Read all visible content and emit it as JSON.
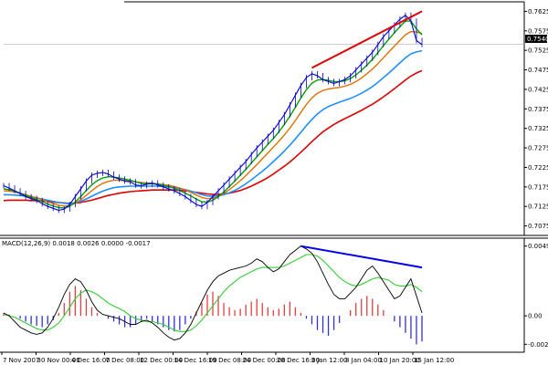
{
  "chart_data": [
    {
      "panel": "price",
      "type": "line",
      "current_price_label": "0.7540",
      "y_ticks": [
        "0.7625",
        "0.7575",
        "0.7525",
        "0.7475",
        "0.7425",
        "0.7375",
        "0.7325",
        "0.7275",
        "0.7225",
        "0.7175",
        "0.7125",
        "0.7075"
      ],
      "ylim": [
        0.706,
        0.764
      ],
      "x_ticks": [
        "7 Nov 2007",
        "30 Nov 00:00",
        "4 Dec 16:00",
        "7 Dec 08:00",
        "12 Dec 00:00",
        "14 Dec 16:00",
        "19 Dec 08:00",
        "24 Dec 00:00",
        "28 Dec 16:00",
        "3 Jan 12:00",
        "8 Jan 04:00",
        "10 Jan 20:00",
        "15 Jan 12:00"
      ],
      "colors": {
        "price": "#0000cc",
        "ma_green": "#00a000",
        "ma_orange": "#e07000",
        "ma_blue": "#1e90ff",
        "ma_red": "#dd0000",
        "trendline": "#dd0000"
      },
      "close": [
        0.7178,
        0.7172,
        0.7165,
        0.7158,
        0.715,
        0.7145,
        0.714,
        0.7132,
        0.7125,
        0.712,
        0.7115,
        0.7118,
        0.713,
        0.715,
        0.717,
        0.719,
        0.7205,
        0.721,
        0.7212,
        0.7208,
        0.72,
        0.7195,
        0.719,
        0.7188,
        0.718,
        0.7178,
        0.7182,
        0.7185,
        0.718,
        0.7175,
        0.717,
        0.7165,
        0.7158,
        0.715,
        0.714,
        0.713,
        0.7125,
        0.7135,
        0.715,
        0.7165,
        0.718,
        0.7195,
        0.721,
        0.7225,
        0.724,
        0.7258,
        0.7275,
        0.729,
        0.7305,
        0.732,
        0.734,
        0.736,
        0.7385,
        0.741,
        0.7435,
        0.7455,
        0.7465,
        0.746,
        0.745,
        0.7445,
        0.744,
        0.7445,
        0.745,
        0.746,
        0.7475,
        0.749,
        0.7505,
        0.752,
        0.754,
        0.756,
        0.7575,
        0.759,
        0.7605,
        0.7615,
        0.76,
        0.755,
        0.754
      ],
      "ma_green": [
        0.717,
        0.7168,
        0.7164,
        0.7159,
        0.7153,
        0.7148,
        0.7143,
        0.7137,
        0.7131,
        0.7126,
        0.7122,
        0.7121,
        0.7125,
        0.7136,
        0.715,
        0.7166,
        0.718,
        0.7191,
        0.7198,
        0.7201,
        0.72,
        0.7198,
        0.7195,
        0.7192,
        0.7188,
        0.7184,
        0.7183,
        0.7183,
        0.7182,
        0.7179,
        0.7176,
        0.7171,
        0.7166,
        0.7159,
        0.7152,
        0.7144,
        0.7137,
        0.7136,
        0.7141,
        0.715,
        0.7162,
        0.7176,
        0.719,
        0.7205,
        0.722,
        0.7236,
        0.7252,
        0.7268,
        0.7284,
        0.7299,
        0.7316,
        0.7335,
        0.7356,
        0.7379,
        0.7403,
        0.7424,
        0.7441,
        0.7449,
        0.745,
        0.7448,
        0.7445,
        0.7445,
        0.7447,
        0.7453,
        0.7462,
        0.7474,
        0.7487,
        0.7502,
        0.7519,
        0.7537,
        0.7554,
        0.757,
        0.7586,
        0.76,
        0.76,
        0.758,
        0.7565
      ],
      "ma_orange": [
        0.7165,
        0.7164,
        0.7162,
        0.7159,
        0.7155,
        0.7151,
        0.7147,
        0.7142,
        0.7137,
        0.7132,
        0.7128,
        0.7126,
        0.7127,
        0.7133,
        0.7142,
        0.7153,
        0.7165,
        0.7176,
        0.7184,
        0.7189,
        0.7192,
        0.7192,
        0.7191,
        0.719,
        0.7188,
        0.7186,
        0.7185,
        0.7184,
        0.7183,
        0.7181,
        0.7179,
        0.7176,
        0.7172,
        0.7167,
        0.7161,
        0.7154,
        0.7148,
        0.7145,
        0.7146,
        0.7151,
        0.7158,
        0.7168,
        0.7179,
        0.7191,
        0.7204,
        0.7218,
        0.7232,
        0.7247,
        0.7262,
        0.7277,
        0.7292,
        0.7308,
        0.7326,
        0.7345,
        0.7366,
        0.7386,
        0.7403,
        0.7415,
        0.7422,
        0.7426,
        0.7428,
        0.743,
        0.7433,
        0.7438,
        0.7445,
        0.7454,
        0.7465,
        0.7477,
        0.7491,
        0.7506,
        0.7521,
        0.7536,
        0.7551,
        0.7565,
        0.7573,
        0.7572,
        0.7568
      ],
      "ma_blue": [
        0.7155,
        0.7155,
        0.7154,
        0.7153,
        0.7151,
        0.7149,
        0.7147,
        0.7144,
        0.7141,
        0.7138,
        0.7135,
        0.7133,
        0.7132,
        0.7134,
        0.7138,
        0.7144,
        0.7151,
        0.7158,
        0.7164,
        0.7169,
        0.7173,
        0.7175,
        0.7176,
        0.7177,
        0.7177,
        0.7177,
        0.7177,
        0.7177,
        0.7177,
        0.7176,
        0.7175,
        0.7173,
        0.7171,
        0.7168,
        0.7164,
        0.716,
        0.7155,
        0.7152,
        0.7151,
        0.7152,
        0.7155,
        0.716,
        0.7166,
        0.7174,
        0.7183,
        0.7193,
        0.7204,
        0.7215,
        0.7227,
        0.724,
        0.7253,
        0.7267,
        0.7282,
        0.7298,
        0.7315,
        0.7332,
        0.7348,
        0.7362,
        0.7373,
        0.7381,
        0.7387,
        0.7392,
        0.7397,
        0.7402,
        0.7408,
        0.7415,
        0.7423,
        0.7432,
        0.7443,
        0.7455,
        0.7467,
        0.748,
        0.7493,
        0.7506,
        0.7516,
        0.7521,
        0.7524
      ],
      "ma_red": [
        0.714,
        0.7141,
        0.7141,
        0.7141,
        0.7141,
        0.714,
        0.714,
        0.7139,
        0.7138,
        0.7136,
        0.7135,
        0.7134,
        0.7133,
        0.7134,
        0.7135,
        0.7138,
        0.7141,
        0.7145,
        0.7149,
        0.7153,
        0.7156,
        0.7159,
        0.7161,
        0.7163,
        0.7164,
        0.7165,
        0.7166,
        0.7167,
        0.7167,
        0.7167,
        0.7167,
        0.7167,
        0.7166,
        0.7165,
        0.7163,
        0.7161,
        0.7159,
        0.7157,
        0.7156,
        0.7156,
        0.7157,
        0.7159,
        0.7162,
        0.7166,
        0.7171,
        0.7177,
        0.7184,
        0.7191,
        0.7199,
        0.7208,
        0.7218,
        0.7228,
        0.7239,
        0.7251,
        0.7264,
        0.7277,
        0.7291,
        0.7304,
        0.7316,
        0.7326,
        0.7335,
        0.7343,
        0.735,
        0.7357,
        0.7364,
        0.7371,
        0.7379,
        0.7387,
        0.7396,
        0.7406,
        0.7416,
        0.7427,
        0.7438,
        0.7449,
        0.7459,
        0.7467,
        0.7473
      ],
      "trendline": [
        [
          56,
          0.748
        ],
        [
          76,
          0.7625
        ]
      ]
    },
    {
      "panel": "macd",
      "type": "bar",
      "label": "MACD(12,26,9) 0.0018 0.0026 0.0000 -0.0017",
      "y_ticks": [
        "0.0049",
        "0.00",
        "-0.002"
      ],
      "ylim": [
        -0.0023,
        0.0052
      ],
      "colors": {
        "hist_pos": "#e04040",
        "hist_neg": "#3030e0",
        "macd": "#000000",
        "signal": "#33cc33",
        "trendline": "#0000ee"
      },
      "histogram": [
        0.0002,
        0.0001,
        0.0,
        -0.0002,
        -0.0004,
        -0.0006,
        -0.0007,
        -0.0008,
        -0.0006,
        -0.0003,
        0.0002,
        0.0009,
        0.0017,
        0.0021,
        0.0018,
        0.0012,
        0.0006,
        0.0002,
        0.0,
        -0.0002,
        -0.0004,
        -0.0006,
        -0.0008,
        -0.0008,
        -0.0006,
        -0.0004,
        -0.0002,
        -0.0004,
        -0.0006,
        -0.0008,
        -0.001,
        -0.0011,
        -0.001,
        -0.0006,
        -0.0002,
        0.0003,
        0.0009,
        0.0015,
        0.0017,
        0.0014,
        0.0009,
        0.0006,
        0.0004,
        0.0005,
        0.0008,
        0.001,
        0.0012,
        0.0009,
        0.0006,
        0.0004,
        0.0005,
        0.0008,
        0.001,
        0.0006,
        0.0002,
        -0.0002,
        -0.0006,
        -0.001,
        -0.0012,
        -0.0014,
        -0.001,
        -0.0005,
        0.0,
        0.0004,
        0.0009,
        0.0012,
        0.0014,
        0.0012,
        0.0008,
        0.0004,
        0.0,
        -0.0004,
        -0.0008,
        -0.0012,
        -0.0016,
        -0.002,
        -0.0018
      ],
      "macd": [
        0.0002,
        0.0,
        -0.0004,
        -0.0008,
        -0.001,
        -0.0012,
        -0.0013,
        -0.0012,
        -0.0008,
        -0.0002,
        0.0006,
        0.0015,
        0.0022,
        0.0026,
        0.0024,
        0.0018,
        0.001,
        0.0004,
        0.0001,
        0.0,
        -0.0001,
        -0.0002,
        -0.0004,
        -0.0006,
        -0.0006,
        -0.0004,
        -0.0003,
        -0.0005,
        -0.0008,
        -0.0012,
        -0.0015,
        -0.0017,
        -0.0016,
        -0.0012,
        -0.0006,
        0.0002,
        0.001,
        0.0018,
        0.0024,
        0.0028,
        0.003,
        0.0032,
        0.0033,
        0.0034,
        0.0035,
        0.0037,
        0.004,
        0.0038,
        0.0034,
        0.0031,
        0.0033,
        0.0038,
        0.0043,
        0.0046,
        0.0049,
        0.0047,
        0.0044,
        0.0038,
        0.003,
        0.0022,
        0.0015,
        0.0012,
        0.0012,
        0.0016,
        0.002,
        0.0026,
        0.0032,
        0.0035,
        0.003,
        0.0024,
        0.0018,
        0.0012,
        0.0014,
        0.002,
        0.0026,
        0.0014,
        0.0002
      ],
      "signal": [
        0.0001,
        0.0,
        -0.0001,
        -0.0003,
        -0.0005,
        -0.0007,
        -0.0009,
        -0.001,
        -0.001,
        -0.0008,
        -0.0005,
        0.0,
        0.0006,
        0.0012,
        0.0016,
        0.0018,
        0.0017,
        0.0015,
        0.0012,
        0.0009,
        0.0007,
        0.0005,
        0.0003,
        0.0,
        -0.0002,
        -0.0003,
        -0.0004,
        -0.0004,
        -0.0005,
        -0.0006,
        -0.0008,
        -0.001,
        -0.0011,
        -0.0011,
        -0.001,
        -0.0007,
        -0.0003,
        0.0002,
        0.0007,
        0.0012,
        0.0017,
        0.0021,
        0.0024,
        0.0027,
        0.0029,
        0.0031,
        0.0033,
        0.0034,
        0.0034,
        0.0034,
        0.0034,
        0.0035,
        0.0037,
        0.0039,
        0.0041,
        0.0043,
        0.0043,
        0.0042,
        0.0039,
        0.0035,
        0.0031,
        0.0027,
        0.0024,
        0.0022,
        0.0021,
        0.0022,
        0.0024,
        0.0026,
        0.0027,
        0.0026,
        0.0025,
        0.0022,
        0.0021,
        0.0021,
        0.0022,
        0.002,
        0.0017
      ],
      "trendline": [
        [
          54,
          0.0049
        ],
        [
          76,
          0.0034
        ]
      ]
    }
  ]
}
